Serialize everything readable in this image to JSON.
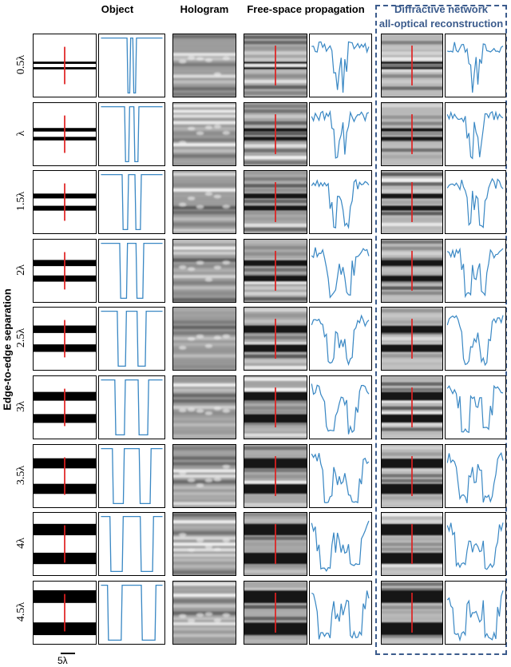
{
  "headers": {
    "object": "Object",
    "hologram": "Hologram",
    "free_space": "Free-space propagation",
    "diffractive_line1": "Diffractive network",
    "diffractive_line2": "all-optical reconstruction"
  },
  "side_label": "Edge-to-edge separation",
  "scale_label": "5λ",
  "rows": [
    {
      "label": "0.5λ",
      "sep": 0.5
    },
    {
      "label": "λ",
      "sep": 1.0
    },
    {
      "label": "1.5λ",
      "sep": 1.5
    },
    {
      "label": "2λ",
      "sep": 2.0
    },
    {
      "label": "2.5λ",
      "sep": 2.5
    },
    {
      "label": "3λ",
      "sep": 3.0
    },
    {
      "label": "3.5λ",
      "sep": 3.5
    },
    {
      "label": "4λ",
      "sep": 4.0
    },
    {
      "label": "4.5λ",
      "sep": 4.5
    }
  ],
  "colors": {
    "profile": "#3a88c4",
    "marker": "#e02020",
    "diffractive_border": "#3b5b8c"
  }
}
